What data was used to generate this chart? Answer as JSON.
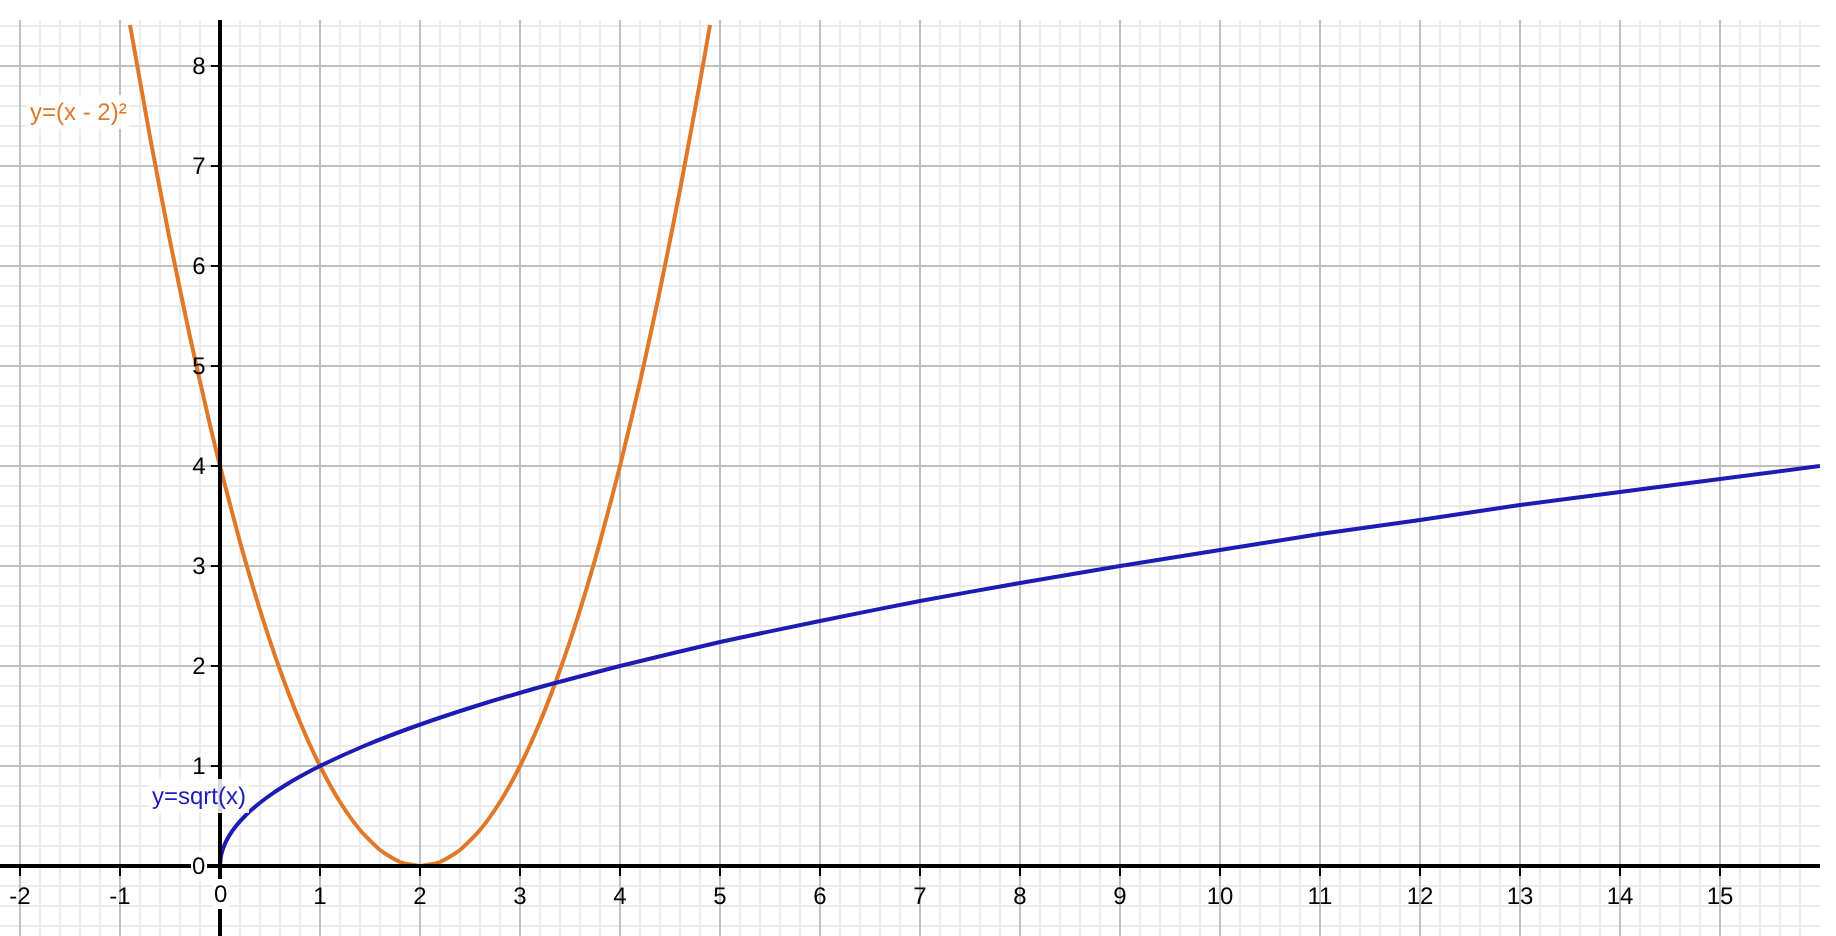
{
  "chart_data": {
    "type": "line",
    "xlim": [
      -2.2,
      16
    ],
    "ylim": [
      -0.7,
      8.46
    ],
    "xticks": [
      -2,
      -1,
      0,
      1,
      2,
      3,
      4,
      5,
      6,
      7,
      8,
      9,
      10,
      11,
      12,
      13,
      14,
      15
    ],
    "yticks": [
      0,
      1,
      2,
      3,
      4,
      5,
      6,
      7,
      8
    ],
    "grid": true,
    "legend": false,
    "marker": "none",
    "line_style": "solid",
    "series": [
      {
        "name": "y=(x - 2)²",
        "color": "#e0782a",
        "x": [
          -0.9,
          -0.7,
          -0.5,
          -0.3,
          -0.1,
          0,
          0.2,
          0.4,
          0.6,
          0.8,
          1,
          1.2,
          1.4,
          1.6,
          1.8,
          2,
          2.2,
          2.4,
          2.6,
          2.8,
          3,
          3.2,
          3.4,
          3.6,
          3.8,
          4,
          4.2,
          4.4,
          4.6,
          4.8,
          4.9
        ],
        "values": [
          8.41,
          7.29,
          6.25,
          5.29,
          4.41,
          4,
          3.24,
          2.56,
          1.96,
          1.44,
          1,
          0.64,
          0.36,
          0.16,
          0.04,
          0,
          0.04,
          0.16,
          0.36,
          0.64,
          1,
          1.44,
          1.96,
          2.56,
          3.24,
          4,
          4.84,
          5.76,
          6.76,
          7.84,
          8.41
        ]
      },
      {
        "name": "y=sqrt(x)",
        "color": "#1c1cb4",
        "x": [
          0,
          0.01,
          0.04,
          0.09,
          0.16,
          0.25,
          0.36,
          0.49,
          0.64,
          0.81,
          1,
          1.44,
          1.96,
          2.56,
          3.24,
          4,
          5,
          6,
          7,
          8,
          9,
          10,
          11,
          12,
          13,
          14,
          15,
          16
        ],
        "values": [
          0,
          0.1,
          0.2,
          0.3,
          0.4,
          0.5,
          0.6,
          0.7,
          0.8,
          0.9,
          1,
          1.2,
          1.4,
          1.6,
          1.8,
          2,
          2.24,
          2.45,
          2.65,
          2.83,
          3,
          3.16,
          3.32,
          3.46,
          3.61,
          3.74,
          3.87,
          4
        ]
      }
    ]
  }
}
